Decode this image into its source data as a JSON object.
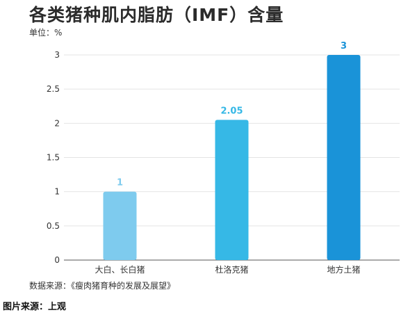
{
  "header": {
    "title": "各类猪种肌内脂肪（IMF）含量",
    "unit": "单位：%"
  },
  "footer": {
    "source": "数据来源：《瘦肉猪育种的发展及展望》",
    "credit": "图片来源：上观"
  },
  "chart_data": {
    "type": "bar",
    "title": "各类猪种肌内脂肪（IMF）含量",
    "ylabel": "单位：%",
    "xlabel": "",
    "categories": [
      "大白、长白猪",
      "杜洛克猪",
      "地方土猪"
    ],
    "values": [
      1,
      2.05,
      3
    ],
    "data_labels": [
      "1",
      "2.05",
      "3"
    ],
    "ylim": [
      0,
      3
    ],
    "yticks": [
      0,
      0.5,
      1,
      1.5,
      2,
      2.5,
      3
    ],
    "ytick_labels": [
      "0",
      "0.5",
      "1",
      "1.5",
      "2",
      "2.5",
      "3"
    ],
    "bar_colors": [
      "#7ecbee",
      "#36b8e6",
      "#1a93d8"
    ],
    "label_colors": [
      "#7ecbee",
      "#36b8e6",
      "#1a93d8"
    ],
    "grid": true,
    "legend": "none"
  }
}
